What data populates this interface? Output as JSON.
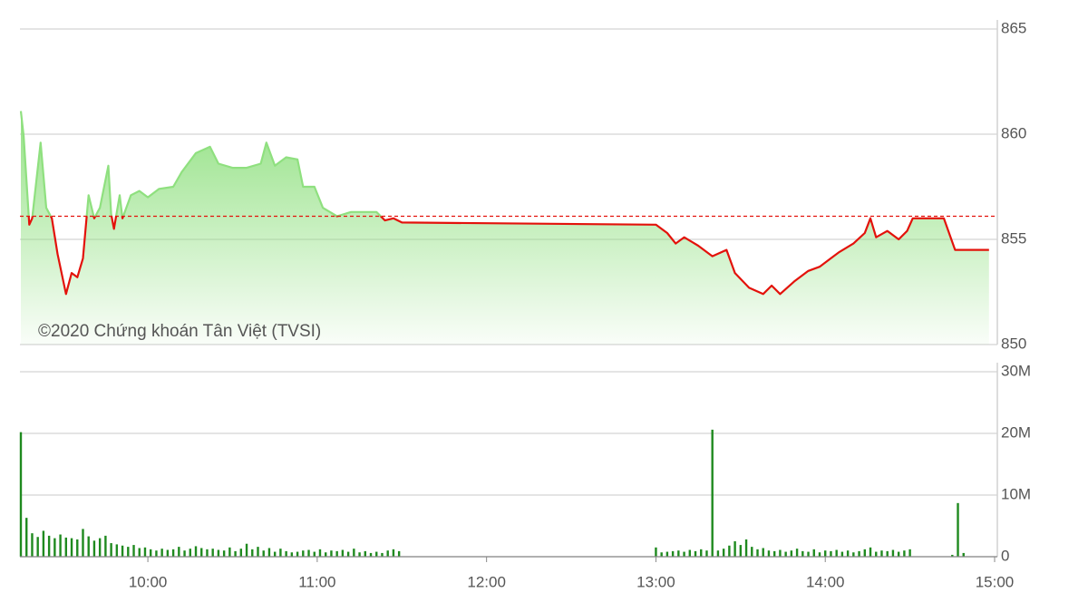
{
  "chart_data": [
    {
      "type": "line",
      "annotation": "©2020 Chứng khoán Tân Việt (TVSI)",
      "x": [
        "09:15",
        "09:16",
        "09:18",
        "09:19",
        "09:22",
        "09:24",
        "09:26",
        "09:28",
        "09:31",
        "09:33",
        "09:35",
        "09:37",
        "09:39",
        "09:41",
        "09:43",
        "09:46",
        "09:47",
        "09:48",
        "09:50",
        "09:51",
        "09:54",
        "09:57",
        "10:00",
        "10:04",
        "10:09",
        "10:12",
        "10:17",
        "10:22",
        "10:25",
        "10:30",
        "10:35",
        "10:40",
        "10:42",
        "10:45",
        "10:49",
        "10:53",
        "10:55",
        "10:59",
        "11:02",
        "11:07",
        "11:12",
        "11:16",
        "11:21",
        "11:24",
        "11:27",
        "11:30",
        "13:00",
        "13:04",
        "13:07",
        "13:10",
        "13:15",
        "13:20",
        "13:25",
        "13:28",
        "13:33",
        "13:38",
        "13:41",
        "13:44",
        "13:49",
        "13:54",
        "13:58",
        "14:02",
        "14:05",
        "14:10",
        "14:14",
        "14:16",
        "14:18",
        "14:22",
        "14:26",
        "14:29",
        "14:31",
        "14:42",
        "14:46",
        "14:58"
      ],
      "values": [
        861.1,
        859.9,
        855.7,
        856.0,
        859.6,
        856.5,
        856.0,
        854.3,
        852.4,
        853.4,
        853.2,
        854.1,
        857.1,
        856.0,
        856.5,
        858.5,
        856.2,
        855.5,
        857.1,
        856.0,
        857.1,
        857.3,
        857.0,
        857.4,
        857.5,
        858.2,
        859.1,
        859.4,
        858.6,
        858.4,
        858.4,
        858.6,
        859.6,
        858.5,
        858.9,
        858.8,
        857.5,
        857.5,
        856.5,
        856.1,
        856.3,
        856.3,
        856.3,
        855.9,
        856.0,
        855.8,
        855.7,
        855.3,
        854.8,
        855.1,
        854.7,
        854.2,
        854.5,
        853.4,
        852.7,
        852.4,
        852.8,
        852.4,
        853.0,
        853.5,
        853.7,
        854.1,
        854.4,
        854.8,
        855.3,
        856.0,
        855.1,
        855.4,
        855.0,
        855.4,
        856.0,
        856.0,
        854.5,
        854.5
      ],
      "reference": 856.1,
      "color_up": "#8fe07f",
      "color_down": "#e3120b",
      "xlim": [
        "09:15",
        "15:00"
      ],
      "ylim": [
        850,
        865
      ],
      "yticks": [
        850,
        855,
        860,
        865
      ],
      "grid": true
    },
    {
      "type": "bar",
      "x": [
        "09:15",
        "09:17",
        "09:19",
        "09:21",
        "09:23",
        "09:25",
        "09:27",
        "09:29",
        "09:31",
        "09:33",
        "09:35",
        "09:37",
        "09:39",
        "09:41",
        "09:43",
        "09:45",
        "09:47",
        "09:49",
        "09:51",
        "09:53",
        "09:55",
        "09:57",
        "09:59",
        "10:01",
        "10:03",
        "10:05",
        "10:07",
        "10:09",
        "10:11",
        "10:13",
        "10:15",
        "10:17",
        "10:19",
        "10:21",
        "10:23",
        "10:25",
        "10:27",
        "10:29",
        "10:31",
        "10:33",
        "10:35",
        "10:37",
        "10:39",
        "10:41",
        "10:43",
        "10:45",
        "10:47",
        "10:49",
        "10:51",
        "10:53",
        "10:55",
        "10:57",
        "10:59",
        "11:01",
        "11:03",
        "11:05",
        "11:07",
        "11:09",
        "11:11",
        "11:13",
        "11:15",
        "11:17",
        "11:19",
        "11:21",
        "11:23",
        "11:25",
        "11:27",
        "11:29",
        "13:00",
        "13:02",
        "13:04",
        "13:06",
        "13:08",
        "13:10",
        "13:12",
        "13:14",
        "13:16",
        "13:18",
        "13:20",
        "13:22",
        "13:24",
        "13:26",
        "13:28",
        "13:30",
        "13:32",
        "13:34",
        "13:36",
        "13:38",
        "13:40",
        "13:42",
        "13:44",
        "13:46",
        "13:48",
        "13:50",
        "13:52",
        "13:54",
        "13:56",
        "13:58",
        "14:00",
        "14:02",
        "14:04",
        "14:06",
        "14:08",
        "14:10",
        "14:12",
        "14:14",
        "14:16",
        "14:18",
        "14:20",
        "14:22",
        "14:24",
        "14:26",
        "14:28",
        "14:30",
        "14:45",
        "14:47",
        "14:49"
      ],
      "values": [
        20.2,
        6.3,
        3.8,
        3.2,
        4.2,
        3.4,
        3.0,
        3.6,
        3.1,
        3.0,
        2.8,
        4.5,
        3.3,
        2.6,
        3.0,
        3.4,
        2.2,
        2.0,
        1.8,
        1.6,
        1.9,
        1.4,
        1.5,
        1.2,
        1.0,
        1.3,
        1.1,
        1.2,
        1.6,
        1.0,
        1.3,
        1.7,
        1.4,
        1.2,
        1.3,
        1.1,
        1.0,
        1.5,
        0.9,
        1.3,
        2.1,
        1.2,
        1.6,
        1.0,
        1.4,
        0.8,
        1.3,
        0.9,
        0.7,
        0.8,
        1.0,
        1.1,
        0.8,
        1.2,
        0.7,
        1.0,
        0.9,
        1.1,
        0.8,
        1.3,
        0.7,
        0.9,
        0.6,
        0.8,
        0.6,
        1.0,
        1.2,
        0.9,
        1.5,
        0.7,
        0.8,
        0.9,
        1.0,
        0.8,
        1.1,
        0.9,
        1.2,
        1.0,
        20.6,
        1.0,
        1.3,
        1.8,
        2.5,
        1.9,
        2.8,
        1.6,
        1.2,
        1.4,
        1.0,
        0.9,
        1.1,
        0.8,
        1.0,
        1.3,
        0.9,
        0.8,
        1.2,
        0.7,
        1.0,
        0.9,
        1.1,
        0.8,
        1.0,
        0.7,
        0.9,
        1.2,
        1.5,
        0.8,
        1.0,
        0.9,
        1.1,
        0.8,
        1.0,
        1.2,
        0.3,
        8.7,
        0.6
      ],
      "color": "#1f8a1f",
      "xlim": [
        "09:15",
        "15:00"
      ],
      "xticks": [
        "10:00",
        "11:00",
        "12:00",
        "13:00",
        "14:00",
        "15:00"
      ],
      "ylim": [
        0,
        30
      ],
      "yticks": [
        0,
        {
          "value": 10,
          "label": "10M"
        },
        {
          "value": 20,
          "label": "20M"
        },
        {
          "value": 30,
          "label": "30M"
        }
      ],
      "grid": true
    }
  ]
}
